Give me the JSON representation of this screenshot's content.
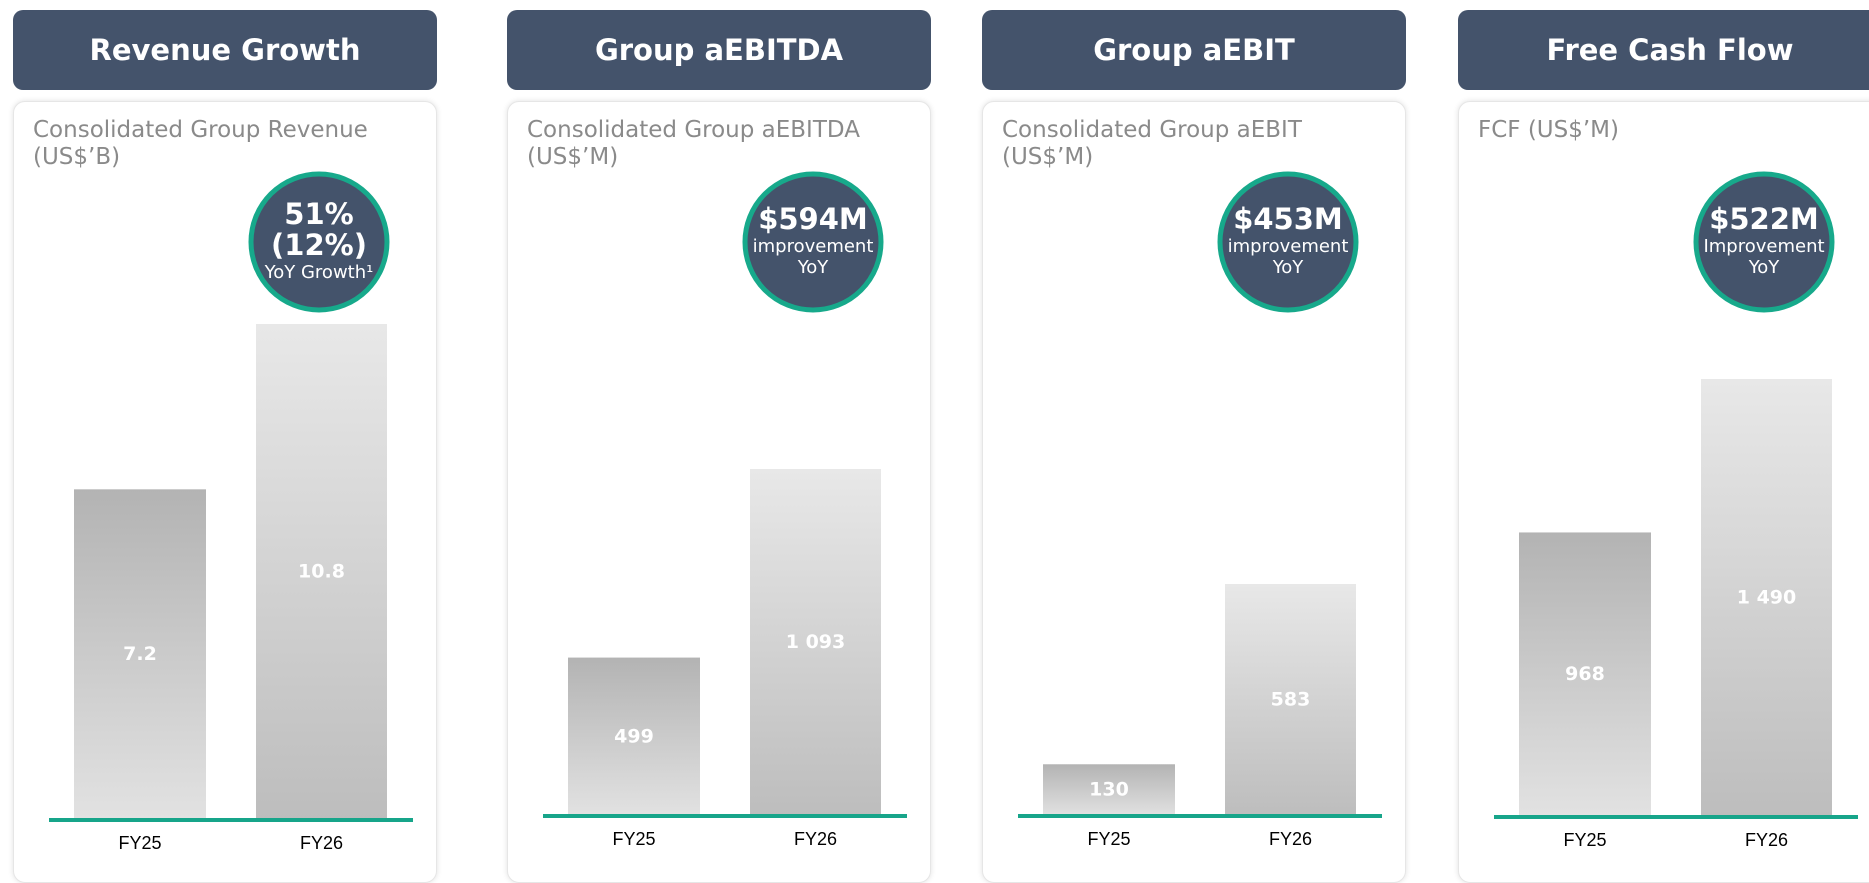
{
  "chart_data": [
    {
      "type": "bar",
      "title": "Revenue Growth",
      "subtitle": "Consolidated Group Revenue (US$’B)",
      "badge": {
        "headline": [
          "51%",
          "(12%)"
        ],
        "text": [
          "YoY Growth¹"
        ]
      },
      "categories": [
        "FY25",
        "FY26"
      ],
      "values": [
        7.2,
        10.8
      ]
    },
    {
      "type": "bar",
      "title": "Group aEBITDA",
      "subtitle": "Consolidated Group aEBITDA (US$’M)",
      "badge": {
        "headline": [
          "$594M"
        ],
        "text": [
          "improvement",
          "YoY"
        ]
      },
      "categories": [
        "FY25",
        "FY26"
      ],
      "values": [
        499,
        1093
      ],
      "value_labels": [
        "499",
        "1 093"
      ]
    },
    {
      "type": "bar",
      "title": "Group aEBIT",
      "subtitle": "Consolidated Group aEBIT (US$’M)",
      "badge": {
        "headline": [
          "$453M"
        ],
        "text": [
          "improvement",
          "YoY"
        ]
      },
      "categories": [
        "FY25",
        "FY26"
      ],
      "values": [
        130,
        583
      ]
    },
    {
      "type": "bar",
      "title": "Free Cash Flow",
      "subtitle": "FCF (US$’M)",
      "badge": {
        "headline": [
          "$522M"
        ],
        "text": [
          "Improvement",
          "YoY"
        ]
      },
      "categories": [
        "FY25",
        "FY26"
      ],
      "values": [
        968,
        1490
      ],
      "value_labels": [
        "968",
        "1 490"
      ]
    }
  ]
}
